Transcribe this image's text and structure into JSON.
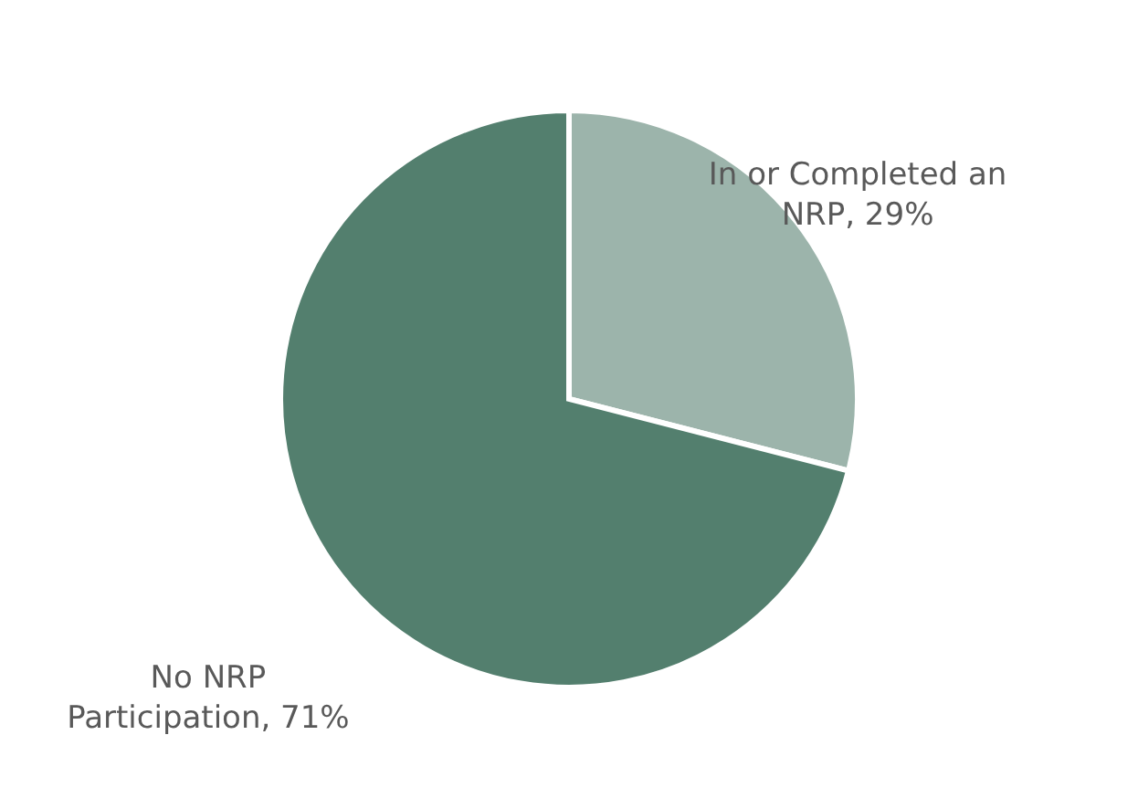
{
  "chart_data": {
    "type": "pie",
    "categories": [
      "In or Completed an NRP",
      "No NRP Participation"
    ],
    "values": [
      29,
      71
    ],
    "colors": [
      "#9cb4ab",
      "#537f6e"
    ],
    "value_labels": [
      "29%",
      "71%"
    ]
  }
}
